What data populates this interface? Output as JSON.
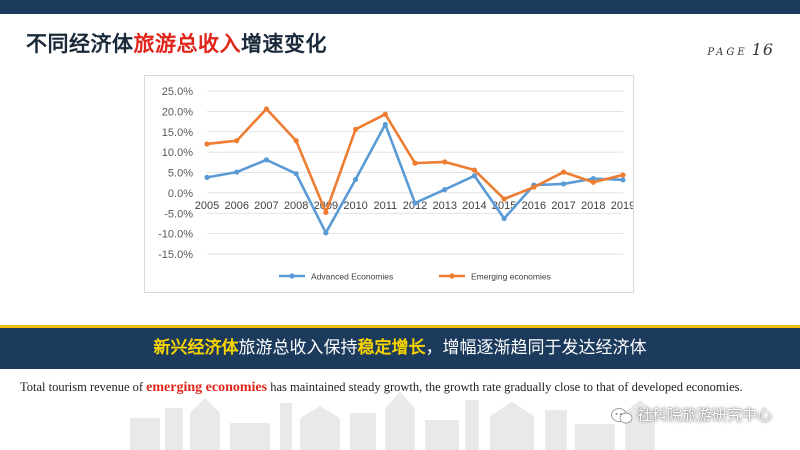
{
  "slide": {
    "title_part1": "不同经济体",
    "title_part2": "旅游总收入",
    "title_part3": "增速变化",
    "page_label": "PAGE",
    "page_number": "16"
  },
  "banner": {
    "part1": "新兴经济体",
    "part2": "旅游总收入保持",
    "part3": "稳定增长",
    "part4": "，增幅逐渐趋同于发达经济体"
  },
  "description": {
    "before": "Total tourism revenue of ",
    "highlight": "emerging economies",
    "after": " has maintained steady growth, the growth rate gradually close to that of developed economies."
  },
  "watermark": {
    "text": "社科院旅游研究中心",
    "icon": "wechat-icon"
  },
  "colors": {
    "navy": "#1b3a5c",
    "accent_red": "#e0251b",
    "yellow": "#f6d200",
    "advanced": "#5b9bd5",
    "emerging": "#ed7d31"
  },
  "chart_data": {
    "type": "line",
    "categories": [
      "2005",
      "2006",
      "2007",
      "2008",
      "2009",
      "2010",
      "2011",
      "2012",
      "2013",
      "2014",
      "2015",
      "2016",
      "2017",
      "2018",
      "2019"
    ],
    "series": [
      {
        "name": "Advanced Economies",
        "color": "#5b9bd5",
        "values": [
          3.8,
          5.1,
          8.1,
          4.7,
          -9.8,
          3.3,
          16.8,
          -2.5,
          0.8,
          4.2,
          -6.3,
          1.9,
          2.2,
          3.5,
          3.2
        ]
      },
      {
        "name": "Emerging economies",
        "color": "#ed7d31",
        "values": [
          12.0,
          12.8,
          20.6,
          12.8,
          -4.8,
          15.6,
          19.3,
          7.3,
          7.6,
          5.6,
          -1.5,
          1.4,
          5.1,
          2.6,
          4.4
        ]
      }
    ],
    "y_ticks": [
      "25.0%",
      "20.0%",
      "15.0%",
      "10.0%",
      "5.0%",
      "0.0%",
      "-5.0%",
      "-10.0%",
      "-15.0%"
    ],
    "ylim": [
      -15,
      25
    ],
    "grid": true,
    "legend_position": "bottom"
  }
}
